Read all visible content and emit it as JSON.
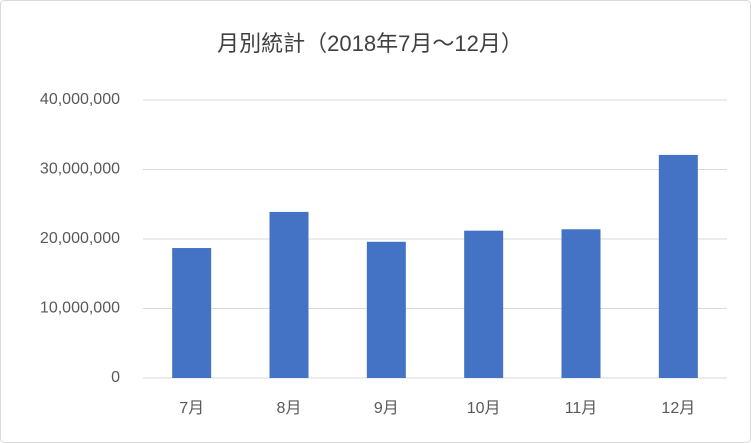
{
  "chart_data": {
    "type": "bar",
    "title": "月別統計（2018年7月～12月）",
    "categories": [
      "7月",
      "8月",
      "9月",
      "10月",
      "11月",
      "12月"
    ],
    "values": [
      18700000,
      23900000,
      19600000,
      21200000,
      21400000,
      32100000
    ],
    "color": "#4472c4",
    "ylim": [
      0,
      40000000
    ],
    "yticks": [
      0,
      {
        "value": 10000000,
        "label": "10,000,000"
      },
      {
        "value": 20000000,
        "label": "20,000,000"
      },
      {
        "value": 30000000,
        "label": "30,000,000"
      },
      {
        "value": 40000000,
        "label": "40,000,000"
      }
    ],
    "grid": true
  }
}
